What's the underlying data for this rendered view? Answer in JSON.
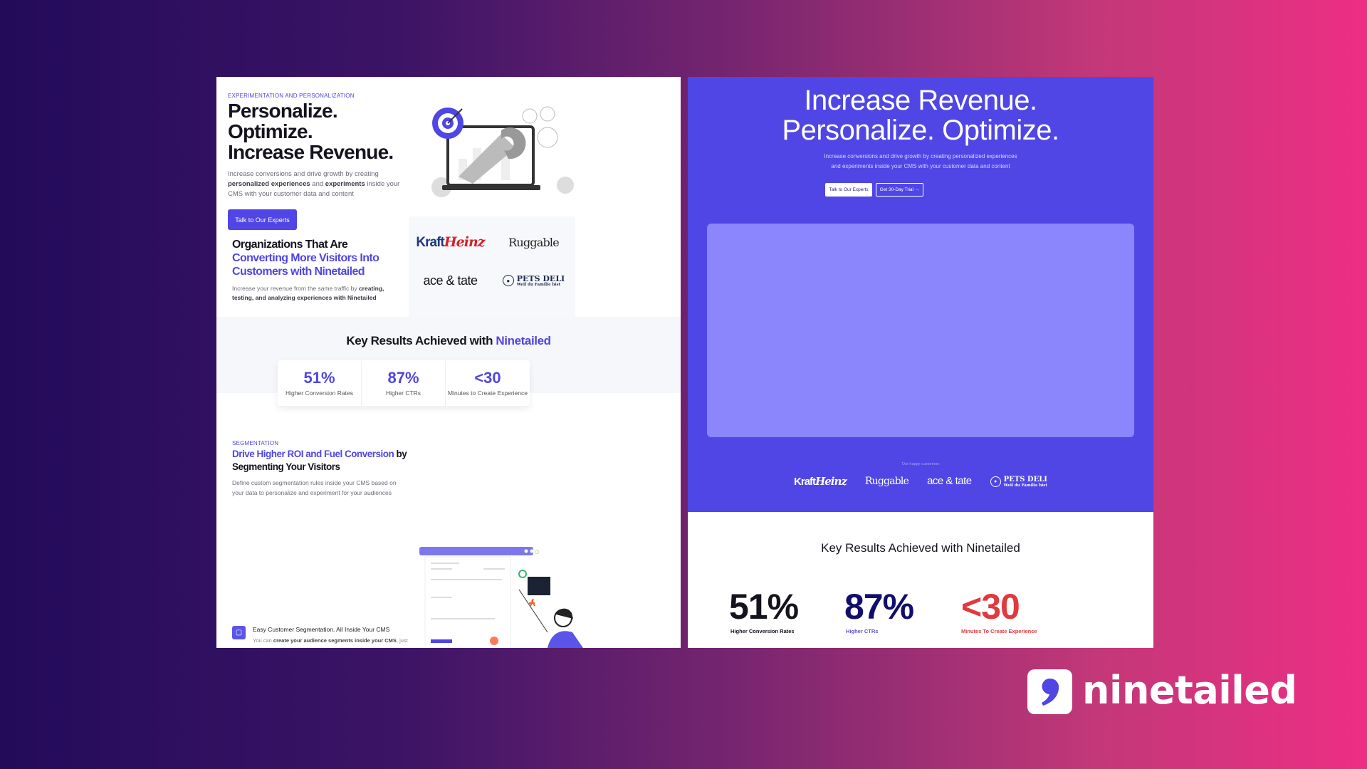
{
  "left": {
    "eyebrow": "EXPERIMENTATION AND PERSONALIZATION",
    "headline": [
      "Personalize.",
      "Optimize.",
      "Increase Revenue."
    ],
    "intro": {
      "t1": "Increase conversions and drive growth by creating ",
      "b1": "personalized experiences",
      "t2": " and ",
      "b2": "experiments",
      "t3": " inside your CMS with your customer data and content"
    },
    "cta": "Talk to Our Experts",
    "orgs": {
      "title_a": "Organizations That Are ",
      "title_b": "Converting More Visitors Into Customers with Ninetailed",
      "desc_a": "Increase your revenue from the same traffic by ",
      "desc_b": "creating, testing, and analyzing experiences with Ninetailed"
    },
    "logos": {
      "kraft": "Kraft",
      "heinz": "Heinz",
      "ruggable": "Ruggable",
      "ace": "ace & tate",
      "pets": "PETS DELI",
      "pets_sub": "Weil du Familie bist"
    },
    "results": {
      "title_a": "Key Results Achieved with ",
      "title_b": "Ninetailed",
      "stats": [
        {
          "value": "51%",
          "label": "Higher Conversion Rates"
        },
        {
          "value": "87%",
          "label": "Higher CTRs"
        },
        {
          "value": "<30",
          "label": "Minutes to Create Experience"
        }
      ]
    },
    "segmentation": {
      "eyebrow": "SEGMENTATION",
      "title_a": "Drive Higher ROI and Fuel Conversion",
      "title_b": " by Segmenting Your Visitors",
      "desc": "Define custom segmentation rules inside your CMS based on your data to personalize and experiment for your audiences",
      "feature_title": "Easy Customer Segmentation. All Inside Your CMS",
      "feature_a": "You can ",
      "feature_b": "create your audience segments inside your CMS",
      "feature_c": ", just"
    }
  },
  "right": {
    "headline": [
      "Increase Revenue.",
      "Personalize. Optimize."
    ],
    "intro": [
      "Increase conversions and drive growth by creating personalized experiences",
      "and experiments inside your CMS with your customer data and content"
    ],
    "cta_primary": "Talk to Our Experts",
    "cta_secondary": "Get 30-Day Trial →",
    "customers_label": "Our happy customers",
    "logos": {
      "kraft": "Kraft",
      "heinz": "Heinz",
      "ruggable": "Ruggable",
      "ace": "ace & tate",
      "pets": "PETS DELI",
      "pets_sub": "Weil du Familie bist"
    },
    "results": {
      "title": "Key Results Achieved with Ninetailed",
      "stats": [
        {
          "value": "51%",
          "label": "Higher Conversion Rates",
          "color": "#14141f"
        },
        {
          "value": "87%",
          "label": "Higher CTRs",
          "color": "#100e6e"
        },
        {
          "value": "<30",
          "label": "Minutes To Create Experience",
          "color": "#e03a3e"
        }
      ]
    }
  },
  "brand": {
    "name": "ninetailed",
    "accent": "#4f46e5",
    "secondary_accent": "#e03a3e"
  }
}
